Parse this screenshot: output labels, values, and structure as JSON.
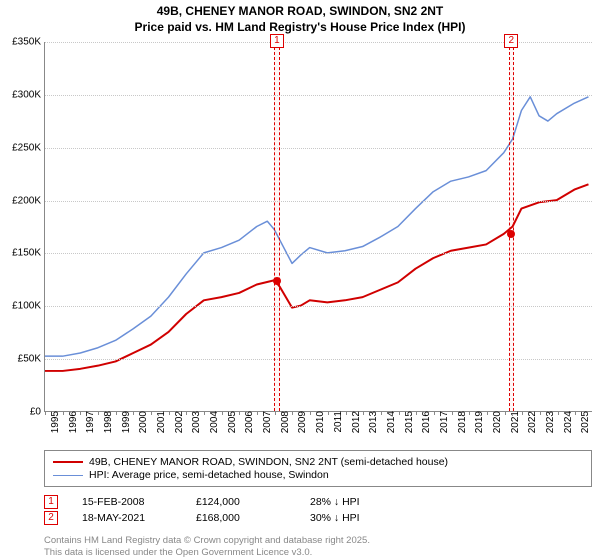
{
  "title": {
    "line1": "49B, CHENEY MANOR ROAD, SWINDON, SN2 2NT",
    "line2": "Price paid vs. HM Land Registry's House Price Index (HPI)"
  },
  "chart": {
    "x_years": [
      1995,
      1996,
      1997,
      1998,
      1999,
      2000,
      2001,
      2002,
      2003,
      2004,
      2005,
      2006,
      2007,
      2008,
      2009,
      2010,
      2011,
      2012,
      2013,
      2014,
      2015,
      2016,
      2017,
      2018,
      2019,
      2020,
      2021,
      2022,
      2023,
      2024,
      2025
    ],
    "xlim": [
      1995,
      2026
    ],
    "y_ticks": [
      0,
      50000,
      100000,
      150000,
      200000,
      250000,
      300000,
      350000
    ],
    "y_tick_labels": [
      "£0",
      "£50K",
      "£100K",
      "£150K",
      "£200K",
      "£250K",
      "£300K",
      "£350K"
    ],
    "ylim": [
      0,
      350000
    ],
    "grid_color": "#c8c8c8",
    "axis_color": "#888888",
    "background_color": "#ffffff",
    "label_fontsize": 10,
    "series": {
      "price_paid": {
        "color": "#d00000",
        "width": 2,
        "points": [
          [
            1995,
            38000
          ],
          [
            1996,
            38000
          ],
          [
            1997,
            40000
          ],
          [
            1998,
            43000
          ],
          [
            1999,
            47000
          ],
          [
            2000,
            55000
          ],
          [
            2001,
            63000
          ],
          [
            2002,
            75000
          ],
          [
            2003,
            92000
          ],
          [
            2004,
            105000
          ],
          [
            2005,
            108000
          ],
          [
            2006,
            112000
          ],
          [
            2007,
            120000
          ],
          [
            2008,
            124000
          ],
          [
            2008.3,
            118000
          ],
          [
            2009,
            98000
          ],
          [
            2009.5,
            100000
          ],
          [
            2010,
            105000
          ],
          [
            2011,
            103000
          ],
          [
            2012,
            105000
          ],
          [
            2013,
            108000
          ],
          [
            2014,
            115000
          ],
          [
            2015,
            122000
          ],
          [
            2016,
            135000
          ],
          [
            2017,
            145000
          ],
          [
            2018,
            152000
          ],
          [
            2019,
            155000
          ],
          [
            2020,
            158000
          ],
          [
            2021,
            168000
          ],
          [
            2021.5,
            175000
          ],
          [
            2022,
            192000
          ],
          [
            2023,
            198000
          ],
          [
            2024,
            200000
          ],
          [
            2025,
            210000
          ],
          [
            2025.8,
            215000
          ]
        ]
      },
      "hpi": {
        "color": "#6a8fd8",
        "width": 1.5,
        "points": [
          [
            1995,
            52000
          ],
          [
            1996,
            52000
          ],
          [
            1997,
            55000
          ],
          [
            1998,
            60000
          ],
          [
            1999,
            67000
          ],
          [
            2000,
            78000
          ],
          [
            2001,
            90000
          ],
          [
            2002,
            108000
          ],
          [
            2003,
            130000
          ],
          [
            2004,
            150000
          ],
          [
            2005,
            155000
          ],
          [
            2006,
            162000
          ],
          [
            2007,
            175000
          ],
          [
            2007.6,
            180000
          ],
          [
            2008,
            172000
          ],
          [
            2009,
            140000
          ],
          [
            2009.5,
            148000
          ],
          [
            2010,
            155000
          ],
          [
            2011,
            150000
          ],
          [
            2012,
            152000
          ],
          [
            2013,
            156000
          ],
          [
            2014,
            165000
          ],
          [
            2015,
            175000
          ],
          [
            2016,
            192000
          ],
          [
            2017,
            208000
          ],
          [
            2018,
            218000
          ],
          [
            2019,
            222000
          ],
          [
            2020,
            228000
          ],
          [
            2021,
            245000
          ],
          [
            2021.5,
            258000
          ],
          [
            2022,
            285000
          ],
          [
            2022.5,
            298000
          ],
          [
            2023,
            280000
          ],
          [
            2023.5,
            275000
          ],
          [
            2024,
            282000
          ],
          [
            2025,
            292000
          ],
          [
            2025.8,
            298000
          ]
        ]
      }
    },
    "markers": [
      {
        "n": "1",
        "x": 2008.12,
        "y": 124000
      },
      {
        "n": "2",
        "x": 2021.38,
        "y": 168000
      }
    ],
    "marker_band_width_years": 0.3,
    "marker_color": "#d00000"
  },
  "legend": {
    "items": [
      {
        "color": "#d00000",
        "width": 2,
        "label": "49B, CHENEY MANOR ROAD, SWINDON, SN2 2NT (semi-detached house)"
      },
      {
        "color": "#6a8fd8",
        "width": 1.5,
        "label": "HPI: Average price, semi-detached house, Swindon"
      }
    ]
  },
  "annotations": [
    {
      "n": "1",
      "date": "15-FEB-2008",
      "price": "£124,000",
      "delta": "28% ↓ HPI"
    },
    {
      "n": "2",
      "date": "18-MAY-2021",
      "price": "£168,000",
      "delta": "30% ↓ HPI"
    }
  ],
  "footer": {
    "line1": "Contains HM Land Registry data © Crown copyright and database right 2025.",
    "line2": "This data is licensed under the Open Government Licence v3.0."
  }
}
